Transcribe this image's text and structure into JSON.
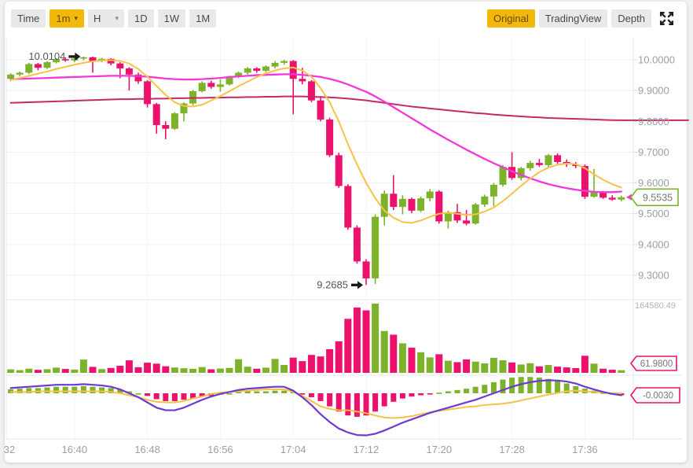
{
  "toolbar": {
    "left": [
      {
        "label": "Time",
        "selected": false,
        "caret": false
      },
      {
        "label": "1m",
        "selected": true,
        "caret": true
      },
      {
        "label": "H",
        "selected": false,
        "caret": true
      },
      {
        "label": "1D",
        "selected": false,
        "caret": false
      },
      {
        "label": "1W",
        "selected": false,
        "caret": false
      },
      {
        "label": "1M",
        "selected": false,
        "caret": false
      }
    ],
    "right": [
      {
        "label": "Original",
        "selected": true
      },
      {
        "label": "TradingView",
        "selected": false
      },
      {
        "label": "Depth",
        "selected": false
      }
    ]
  },
  "icons": {
    "caret_down": "▾",
    "fullscreen": "expand-arrows"
  },
  "colors": {
    "up": "#7db32b",
    "down": "#ed116e",
    "ma_fast": "#f5c348",
    "ma_mid": "#f338da",
    "ma_slow": "#c32a68",
    "macd_dif": "#6f3ad2",
    "macd_dea": "#f5c348",
    "accent": "#F0B90B",
    "axis_text": "#9aa0a6",
    "annotation_text": "#555555",
    "grid": "#f0f0f0",
    "separator": "#e7e7e7",
    "tag_text": "#777777"
  },
  "chart_data": {
    "type": "candlestick+volume+macd",
    "interval": "1m",
    "first_candle_time": "16:33",
    "y_axis": {
      "ticks": [
        {
          "value": 10.0,
          "label": "10.0000"
        },
        {
          "value": 9.9,
          "label": "9.9000"
        },
        {
          "value": 9.8,
          "label": "9.8000"
        },
        {
          "value": 9.7,
          "label": "9.7000"
        },
        {
          "value": 9.6,
          "label": "9.6000"
        },
        {
          "value": 9.5,
          "label": "9.5000"
        },
        {
          "value": 9.4,
          "label": "9.4000"
        },
        {
          "value": 9.3,
          "label": "9.3000"
        }
      ]
    },
    "x_axis": {
      "ticks": [
        {
          "minute": 0,
          "label": "32"
        },
        {
          "minute": 8,
          "label": "16:40"
        },
        {
          "minute": 16,
          "label": "16:48"
        },
        {
          "minute": 24,
          "label": "16:56"
        },
        {
          "minute": 32,
          "label": "17:04"
        },
        {
          "minute": 40,
          "label": "17:12"
        },
        {
          "minute": 48,
          "label": "17:20"
        },
        {
          "minute": 56,
          "label": "17:28"
        },
        {
          "minute": 64,
          "label": "17:36"
        }
      ]
    },
    "volume_axis": {
      "max": 164580,
      "max_label": "164580.49"
    },
    "price_tag": {
      "label": "9.5535",
      "price": 9.5535
    },
    "volume_tag": {
      "label": "61.9800",
      "value": 61.98
    },
    "macd_tag": {
      "label": "-0.0030",
      "value": -0.003
    },
    "annotations": [
      {
        "label": "10.0104",
        "candle_index": 8,
        "price": 10.0104
      },
      {
        "label": "9.2685",
        "candle_index": 39,
        "price": 9.2685
      }
    ],
    "candles": [
      [
        9.938,
        9.956,
        9.93,
        9.952,
        8200
      ],
      [
        9.952,
        9.962,
        9.946,
        9.958,
        6400
      ],
      [
        9.958,
        9.99,
        9.954,
        9.986,
        9800
      ],
      [
        9.986,
        9.99,
        9.966,
        9.974,
        7100
      ],
      [
        9.974,
        9.995,
        9.97,
        9.992,
        8600
      ],
      [
        9.992,
        10.006,
        9.988,
        10.002,
        12400
      ],
      [
        10.002,
        10.008,
        9.994,
        9.998,
        9200
      ],
      [
        9.998,
        10.007,
        9.992,
        10.004,
        7800
      ],
      [
        10.004,
        10.0104,
        9.998,
        10.008,
        31500
      ],
      [
        10.008,
        10.01,
        9.958,
        9.996,
        14200
      ],
      [
        9.996,
        10.006,
        9.992,
        10.003,
        8900
      ],
      [
        10.003,
        10.005,
        9.982,
        9.988,
        11600
      ],
      [
        9.988,
        9.992,
        9.94,
        9.972,
        16800
      ],
      [
        9.972,
        9.976,
        9.9,
        9.952,
        29700
      ],
      [
        9.952,
        9.958,
        9.922,
        9.93,
        13400
      ],
      [
        9.93,
        9.934,
        9.845,
        9.856,
        24100
      ],
      [
        9.856,
        9.86,
        9.76,
        9.788,
        21800
      ],
      [
        9.788,
        9.8,
        9.742,
        9.776,
        15600
      ],
      [
        9.776,
        9.83,
        9.772,
        9.826,
        12700
      ],
      [
        9.826,
        9.862,
        9.8,
        9.858,
        10900
      ],
      [
        9.858,
        9.902,
        9.852,
        9.898,
        9600
      ],
      [
        9.898,
        9.93,
        9.894,
        9.925,
        13800
      ],
      [
        9.925,
        9.932,
        9.906,
        9.912,
        8400
      ],
      [
        9.912,
        9.936,
        9.896,
        9.92,
        10200
      ],
      [
        9.92,
        9.948,
        9.916,
        9.945,
        11700
      ],
      [
        9.945,
        9.962,
        9.94,
        9.958,
        32400
      ],
      [
        9.958,
        9.976,
        9.952,
        9.972,
        14600
      ],
      [
        9.972,
        9.976,
        9.958,
        9.964,
        9800
      ],
      [
        9.964,
        9.982,
        9.96,
        9.978,
        12300
      ],
      [
        9.978,
        9.996,
        9.972,
        9.99,
        33100
      ],
      [
        9.99,
        10.0,
        9.984,
        9.996,
        18700
      ],
      [
        9.996,
        9.999,
        9.823,
        9.938,
        36200
      ],
      [
        9.938,
        9.974,
        9.92,
        9.93,
        27800
      ],
      [
        9.93,
        9.934,
        9.862,
        9.868,
        42600
      ],
      [
        9.868,
        9.882,
        9.8,
        9.806,
        38900
      ],
      [
        9.806,
        9.812,
        9.684,
        9.69,
        56300
      ],
      [
        9.69,
        9.698,
        9.584,
        9.59,
        74800
      ],
      [
        9.59,
        9.596,
        9.448,
        9.455,
        128400
      ],
      [
        9.455,
        9.462,
        9.338,
        9.345,
        155200
      ],
      [
        9.345,
        9.352,
        9.2685,
        9.29,
        148600
      ],
      [
        9.29,
        9.498,
        9.272,
        9.49,
        164580
      ],
      [
        9.49,
        9.575,
        9.462,
        9.565,
        99400
      ],
      [
        9.565,
        9.625,
        9.512,
        9.522,
        90700
      ],
      [
        9.522,
        9.56,
        9.498,
        9.548,
        70200
      ],
      [
        9.548,
        9.552,
        9.502,
        9.51,
        59800
      ],
      [
        9.51,
        9.556,
        9.505,
        9.55,
        48900
      ],
      [
        9.55,
        9.58,
        9.54,
        9.572,
        36700
      ],
      [
        9.572,
        9.576,
        9.468,
        9.475,
        44200
      ],
      [
        9.475,
        9.51,
        9.452,
        9.505,
        28800
      ],
      [
        9.505,
        9.532,
        9.47,
        9.478,
        25400
      ],
      [
        9.478,
        9.512,
        9.462,
        9.468,
        31900
      ],
      [
        9.468,
        9.535,
        9.464,
        9.53,
        26700
      ],
      [
        9.53,
        9.562,
        9.522,
        9.556,
        22400
      ],
      [
        9.556,
        9.6,
        9.524,
        9.594,
        35600
      ],
      [
        9.594,
        9.658,
        9.588,
        9.652,
        29800
      ],
      [
        9.652,
        9.7,
        9.61,
        9.616,
        24600
      ],
      [
        9.616,
        9.652,
        9.608,
        9.648,
        19700
      ],
      [
        9.648,
        9.672,
        9.64,
        9.665,
        22800
      ],
      [
        9.665,
        9.678,
        9.652,
        9.658,
        15400
      ],
      [
        9.658,
        9.694,
        9.65,
        9.69,
        18600
      ],
      [
        9.69,
        9.696,
        9.662,
        9.668,
        14800
      ],
      [
        9.668,
        9.676,
        9.652,
        9.66,
        12900
      ],
      [
        9.66,
        9.668,
        9.648,
        9.655,
        11200
      ],
      [
        9.655,
        9.66,
        9.548,
        9.555,
        40600
      ],
      [
        9.555,
        9.645,
        9.552,
        9.57,
        21800
      ],
      [
        9.57,
        9.574,
        9.548,
        9.552,
        9800
      ],
      [
        9.552,
        9.56,
        9.542,
        9.546,
        7400
      ],
      [
        9.546,
        9.558,
        9.54,
        9.5535,
        6200
      ]
    ],
    "ma_fast": [
      9.935,
      9.941,
      9.948,
      9.955,
      9.962,
      9.97,
      9.977,
      9.984,
      9.99,
      9.995,
      9.998,
      9.999,
      9.996,
      9.988,
      9.97,
      9.945,
      9.915,
      9.886,
      9.862,
      9.85,
      9.848,
      9.854,
      9.868,
      9.882,
      9.898,
      9.914,
      9.929,
      9.944,
      9.956,
      9.965,
      9.972,
      9.975,
      9.965,
      9.945,
      9.908,
      9.862,
      9.8,
      9.726,
      9.66,
      9.6,
      9.55,
      9.51,
      9.487,
      9.473,
      9.47,
      9.478,
      9.49,
      9.5,
      9.503,
      9.5,
      9.496,
      9.498,
      9.507,
      9.52,
      9.541,
      9.565,
      9.591,
      9.614,
      9.635,
      9.65,
      9.659,
      9.663,
      9.661,
      9.648,
      9.628,
      9.61,
      9.596,
      9.585
    ],
    "ma_mid": [
      9.937,
      9.938,
      9.939,
      9.94,
      9.941,
      9.942,
      9.943,
      9.944,
      9.945,
      9.946,
      9.947,
      9.948,
      9.948,
      9.948,
      9.947,
      9.945,
      9.942,
      9.939,
      9.937,
      9.936,
      9.936,
      9.937,
      9.939,
      9.941,
      9.944,
      9.946,
      9.948,
      9.95,
      9.951,
      9.952,
      9.953,
      9.953,
      9.951,
      9.948,
      9.944,
      9.938,
      9.93,
      9.92,
      9.908,
      9.896,
      9.881,
      9.864,
      9.846,
      9.828,
      9.81,
      9.792,
      9.774,
      9.757,
      9.74,
      9.724,
      9.708,
      9.693,
      9.678,
      9.664,
      9.651,
      9.638,
      9.626,
      9.615,
      9.605,
      9.596,
      9.589,
      9.583,
      9.578,
      9.574,
      9.571,
      9.57,
      9.57,
      9.572
    ],
    "ma_slow": [
      9.86,
      9.861,
      9.862,
      9.863,
      9.864,
      9.865,
      9.866,
      9.867,
      9.868,
      9.869,
      9.87,
      9.871,
      9.872,
      9.872,
      9.873,
      9.873,
      9.874,
      9.874,
      9.875,
      9.875,
      9.876,
      9.876,
      9.877,
      9.877,
      9.878,
      9.878,
      9.879,
      9.879,
      9.88,
      9.88,
      9.881,
      9.881,
      9.881,
      9.88,
      9.879,
      9.878,
      9.876,
      9.874,
      9.871,
      9.868,
      9.864,
      9.86,
      9.856,
      9.852,
      9.848,
      9.845,
      9.842,
      9.839,
      9.836,
      9.833,
      9.83,
      9.827,
      9.825,
      9.822,
      9.82,
      9.818,
      9.816,
      9.814,
      9.813,
      9.811,
      9.81,
      9.809,
      9.808,
      9.807,
      9.806,
      9.805,
      9.804,
      9.8035
    ],
    "macd": {
      "hist": [
        0.006,
        0.007,
        0.008,
        0.008,
        0.009,
        0.01,
        0.01,
        0.01,
        0.011,
        0.01,
        0.009,
        0.008,
        0.006,
        0.003,
        0.0,
        -0.004,
        -0.009,
        -0.012,
        -0.012,
        -0.01,
        -0.008,
        -0.005,
        -0.004,
        -0.002,
        0.0,
        0.002,
        0.003,
        0.003,
        0.003,
        0.004,
        0.004,
        0.002,
        -0.002,
        -0.006,
        -0.012,
        -0.02,
        -0.028,
        -0.034,
        -0.036,
        -0.034,
        -0.028,
        -0.02,
        -0.013,
        -0.008,
        -0.005,
        -0.003,
        -0.001,
        0.001,
        0.003,
        0.005,
        0.007,
        0.01,
        0.013,
        0.017,
        0.021,
        0.024,
        0.025,
        0.025,
        0.024,
        0.022,
        0.019,
        0.015,
        0.011,
        0.007,
        0.004,
        0.001,
        -0.001,
        -0.003
      ],
      "dif": [
        0.008,
        0.009,
        0.01,
        0.011,
        0.012,
        0.013,
        0.013,
        0.013,
        0.014,
        0.013,
        0.012,
        0.01,
        0.006,
        0.0,
        -0.006,
        -0.014,
        -0.022,
        -0.026,
        -0.026,
        -0.022,
        -0.016,
        -0.01,
        -0.005,
        -0.001,
        0.002,
        0.005,
        0.007,
        0.008,
        0.009,
        0.01,
        0.01,
        0.004,
        -0.006,
        -0.018,
        -0.032,
        -0.044,
        -0.054,
        -0.06,
        -0.064,
        -0.0645,
        -0.062,
        -0.057,
        -0.051,
        -0.045,
        -0.04,
        -0.035,
        -0.03,
        -0.026,
        -0.022,
        -0.018,
        -0.014,
        -0.01,
        -0.005,
        0.0,
        0.005,
        0.01,
        0.014,
        0.017,
        0.019,
        0.02,
        0.0195,
        0.018,
        0.015,
        0.01,
        0.006,
        0.002,
        -0.001,
        -0.003
      ],
      "dea": [
        0.002,
        0.002,
        0.002,
        0.003,
        0.003,
        0.003,
        0.003,
        0.003,
        0.003,
        0.003,
        0.003,
        0.002,
        0.0,
        -0.003,
        -0.006,
        -0.01,
        -0.013,
        -0.014,
        -0.014,
        -0.012,
        -0.008,
        -0.005,
        -0.001,
        0.001,
        0.002,
        0.003,
        0.004,
        0.005,
        0.006,
        0.006,
        0.006,
        0.002,
        -0.004,
        -0.012,
        -0.02,
        -0.024,
        -0.026,
        -0.026,
        -0.028,
        -0.0305,
        -0.034,
        -0.037,
        -0.038,
        -0.037,
        -0.035,
        -0.032,
        -0.029,
        -0.027,
        -0.025,
        -0.023,
        -0.021,
        -0.02,
        -0.018,
        -0.017,
        -0.016,
        -0.014,
        -0.011,
        -0.008,
        -0.005,
        -0.002,
        0.0005,
        0.003,
        0.004,
        0.003,
        0.002,
        0.001,
        0.0,
        0.0
      ]
    }
  }
}
